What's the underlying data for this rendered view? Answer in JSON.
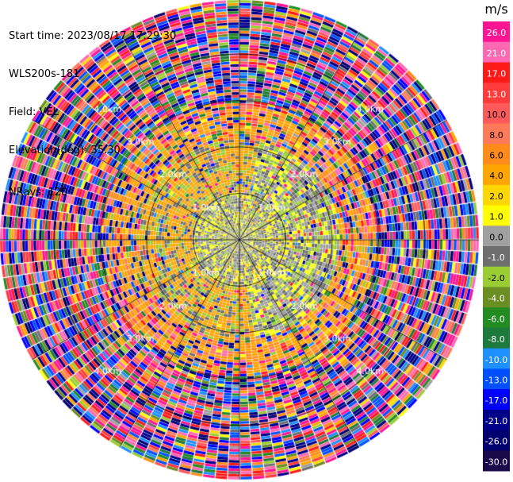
{
  "header": {
    "start_time": "Start time: 2023/08/17 17:29:30",
    "instrument": "WLS200s-181",
    "field": "Field: VEL",
    "elevation": "Elevation(deg): 35.30",
    "nrays": "NRays: 120"
  },
  "chart_data": {
    "type": "heatmap",
    "projection": "polar-ppi",
    "field": "VEL",
    "nrays": 120,
    "range_rings_km": [
      1.0,
      2.0,
      3.0,
      4.0
    ],
    "range_ring_labels": [
      "1.0km",
      "2.0km",
      "3.0km",
      "4.0km"
    ],
    "colorbar": {
      "unit": "m/s",
      "ticks": [
        "26.0",
        "21.0",
        "17.0",
        "13.0",
        "10.0",
        "8.0",
        "6.0",
        "4.0",
        "2.0",
        "1.0",
        "0.0",
        "-1.0",
        "-2.0",
        "-4.0",
        "-6.0",
        "-8.0",
        "-10.0",
        "-13.0",
        "-17.0",
        "-21.0",
        "-26.0",
        "-30.0"
      ],
      "colors": [
        "#ff1493",
        "#ff69b4",
        "#ff1a1a",
        "#ff3b3b",
        "#ff5a5a",
        "#ff7a59",
        "#ff8c1a",
        "#ffa500",
        "#ffd700",
        "#ffff00",
        "#a0a0a0",
        "#6e6e6e",
        "#9acd32",
        "#6b8e23",
        "#228b22",
        "#1e7a3c",
        "#1e90ff",
        "#0050ff",
        "#0000ff",
        "#00008b",
        "#000070",
        "#1a0a4a"
      ],
      "range": [
        -30.0,
        26.0
      ]
    },
    "grid": true
  }
}
